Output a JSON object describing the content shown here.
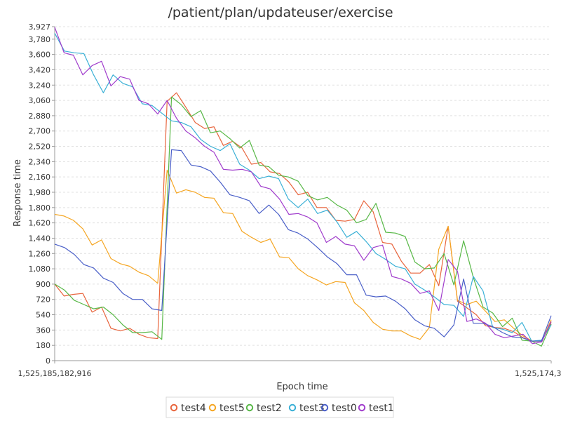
{
  "chart_data": {
    "type": "line",
    "title": "/patient/plan/updateuser/exercise",
    "xlabel": "Epoch time",
    "ylabel": "Response time",
    "x_tick_labels": [
      "1,525,185,182,916",
      "1,525,174,3"
    ],
    "y_tick_labels": [
      "0",
      "180",
      "360",
      "540",
      "720",
      "900",
      "1,080",
      "1,260",
      "1,440",
      "1,620",
      "1,800",
      "1,980",
      "2,160",
      "2,340",
      "2,520",
      "2,700",
      "2,880",
      "3,060",
      "3,240",
      "3,420",
      "3,600",
      "3,780",
      "3,927"
    ],
    "ylim": [
      0,
      3927
    ],
    "point_count": 61,
    "grid": true,
    "legend_position": "bottom",
    "series": [
      {
        "name": "test4",
        "color": "#e8643c",
        "values": [
          900,
          760,
          780,
          790,
          570,
          630,
          380,
          350,
          380,
          310,
          270,
          260,
          3050,
          3150,
          2980,
          2800,
          2730,
          2750,
          2530,
          2580,
          2500,
          2310,
          2330,
          2220,
          2200,
          2100,
          1950,
          1980,
          1800,
          1800,
          1650,
          1640,
          1660,
          1880,
          1750,
          1390,
          1370,
          1170,
          1030,
          1030,
          1130,
          880,
          1580,
          700,
          620,
          540,
          410,
          390,
          380,
          340,
          270,
          230,
          230,
          450
        ]
      },
      {
        "name": "test5",
        "color": "#f5a623",
        "values": [
          1720,
          1700,
          1650,
          1550,
          1360,
          1420,
          1200,
          1140,
          1110,
          1040,
          1000,
          910,
          2240,
          1970,
          2010,
          1980,
          1920,
          1910,
          1740,
          1730,
          1520,
          1450,
          1390,
          1430,
          1220,
          1210,
          1080,
          1000,
          950,
          890,
          930,
          920,
          680,
          590,
          450,
          370,
          350,
          350,
          290,
          250,
          390,
          1310,
          1580,
          710,
          660,
          700,
          580,
          460,
          480,
          380,
          290,
          230,
          230,
          480
        ]
      },
      {
        "name": "test2",
        "color": "#58b847",
        "values": [
          900,
          830,
          710,
          660,
          610,
          630,
          540,
          420,
          330,
          330,
          340,
          250,
          3100,
          3010,
          2870,
          2940,
          2680,
          2700,
          2610,
          2500,
          2590,
          2300,
          2280,
          2180,
          2160,
          2110,
          1940,
          1890,
          1920,
          1830,
          1770,
          1620,
          1660,
          1850,
          1510,
          1500,
          1460,
          1160,
          1080,
          1090,
          1260,
          890,
          1410,
          980,
          630,
          560,
          400,
          500,
          240,
          230,
          170,
          430
        ]
      },
      {
        "name": "test3",
        "color": "#3ab0d6",
        "values": [
          3850,
          3640,
          3620,
          3610,
          3360,
          3150,
          3360,
          3260,
          3220,
          3020,
          3000,
          2910,
          2820,
          2800,
          2750,
          2600,
          2520,
          2470,
          2550,
          2310,
          2240,
          2140,
          2170,
          2140,
          1900,
          1800,
          1900,
          1730,
          1770,
          1630,
          1450,
          1520,
          1400,
          1260,
          1190,
          1110,
          1080,
          900,
          830,
          750,
          660,
          650,
          520,
          990,
          820,
          390,
          370,
          330,
          450,
          230,
          240,
          420
        ]
      },
      {
        "name": "test0",
        "color": "#4a5fc8",
        "values": [
          1370,
          1330,
          1250,
          1130,
          1090,
          970,
          920,
          790,
          720,
          720,
          610,
          590,
          2480,
          2470,
          2300,
          2280,
          2230,
          2100,
          1950,
          1920,
          1880,
          1730,
          1830,
          1720,
          1540,
          1500,
          1430,
          1330,
          1220,
          1140,
          1010,
          1010,
          770,
          750,
          760,
          700,
          610,
          480,
          410,
          380,
          280,
          420,
          960,
          440,
          440,
          400,
          330,
          280,
          270,
          230,
          230,
          530
        ]
      },
      {
        "name": "test1",
        "color": "#a03ccc",
        "values": [
          3920,
          3620,
          3590,
          3360,
          3470,
          3520,
          3230,
          3340,
          3310,
          3060,
          3020,
          2900,
          3060,
          2850,
          2700,
          2620,
          2520,
          2450,
          2250,
          2240,
          2250,
          2220,
          2050,
          2020,
          1900,
          1720,
          1730,
          1690,
          1620,
          1390,
          1460,
          1370,
          1350,
          1180,
          1330,
          1360,
          990,
          960,
          910,
          790,
          820,
          590,
          1190,
          1050,
          460,
          490,
          440,
          310,
          270,
          290,
          310,
          200,
          220,
          460
        ]
      }
    ]
  }
}
